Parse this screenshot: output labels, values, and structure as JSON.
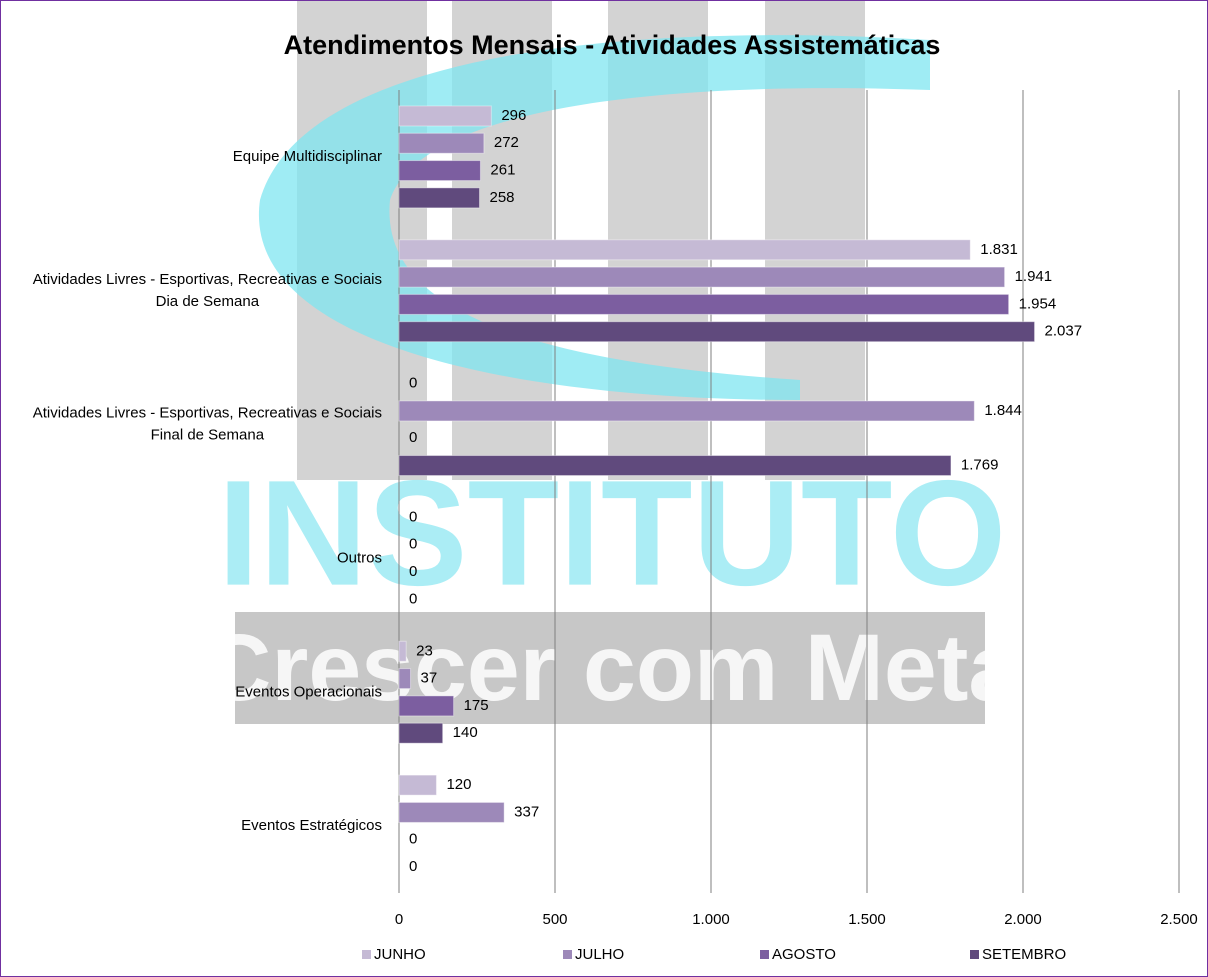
{
  "chart_data": {
    "type": "barh",
    "title": "Atendimentos Mensais - Atividades Assistemáticas",
    "watermark": [
      "INSTITUTO",
      "Crescer com Meta"
    ],
    "categories": [
      "Equipe Multidisciplinar",
      "Atividades Livres - Esportivas, Recreativas e Sociais\nDia de Semana",
      "Atividades Livres - Esportivas, Recreativas e Sociais\nFinal de Semana",
      "Outros",
      "Eventos Operacionais",
      "Eventos Estratégicos"
    ],
    "series": [
      {
        "name": "JUNHO",
        "color": "#c5bad5",
        "values": [
          296,
          1831,
          0,
          0,
          23,
          120
        ],
        "value_labels": [
          "296",
          "1.831",
          "0",
          "0",
          "23",
          "120"
        ]
      },
      {
        "name": "JULHO",
        "color": "#9d89b9",
        "values": [
          272,
          1941,
          1844,
          0,
          37,
          337
        ],
        "value_labels": [
          "272",
          "1.941",
          "1.844",
          "0",
          "37",
          "337"
        ]
      },
      {
        "name": "AGOSTO",
        "color": "#7c5ea0",
        "values": [
          261,
          1954,
          0,
          0,
          175,
          0
        ],
        "value_labels": [
          "261",
          "1.954",
          "0",
          "0",
          "175",
          "0"
        ]
      },
      {
        "name": "SETEMBRO",
        "color": "#604a7d",
        "values": [
          258,
          2037,
          1769,
          0,
          140,
          0
        ],
        "value_labels": [
          "258",
          "2.037",
          "1.769",
          "0",
          "140",
          "0"
        ]
      }
    ],
    "xlim": [
      0,
      2500
    ],
    "xticks": [
      0,
      500,
      {
        "value": 1000,
        "label": "1.000"
      },
      {
        "value": 1500,
        "label": "1.500"
      },
      {
        "value": 2000,
        "label": "2.000"
      },
      {
        "value": 2500,
        "label": "2.500"
      }
    ],
    "grid": true,
    "legend": "bottom"
  }
}
